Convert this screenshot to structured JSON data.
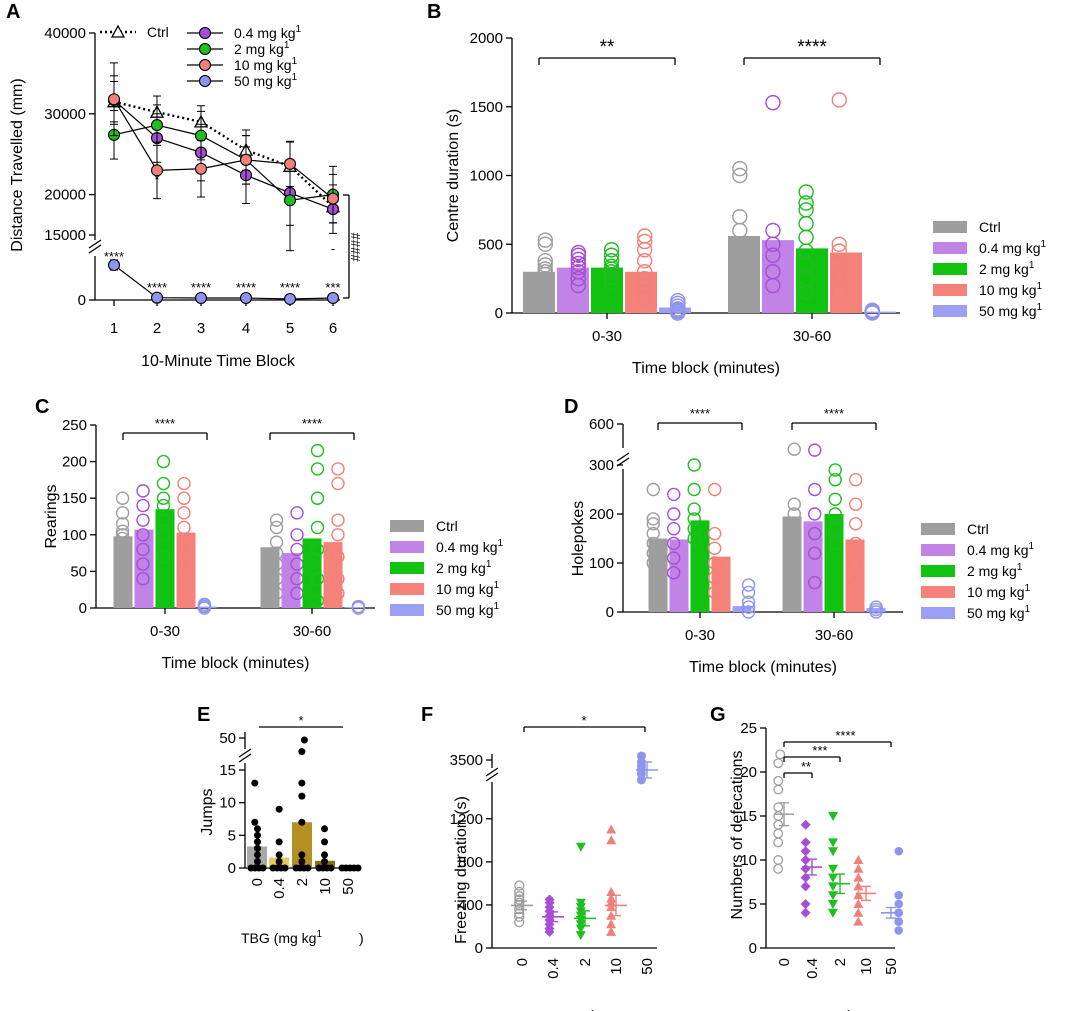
{
  "figure": {
    "sup1": "1",
    "mgkg_prefix": "mg kg",
    "gap_mark": "//"
  },
  "colors": {
    "ctrl": "#9e9e9e",
    "d04": "#a64fd6",
    "d2": "#1fbf1f",
    "d10": "#f08078",
    "d50": "#8f95ee",
    "d04_bar": "#c183e6",
    "d2_bar": "#11c211",
    "d10_bar": "#f4827a",
    "d50_bar": "#9ba0f4",
    "jump_ctrl": "#a9a9a9",
    "jump_low": "#ecc566",
    "jump_mid": "#b58f22",
    "jump_hi": "#8c6b14"
  },
  "chart_data": [
    {
      "id": "A",
      "letter": "A",
      "type": "line",
      "xlabel": "10-Minute Time Block",
      "ylabel": "Distance Travelled (mm)",
      "x": [
        1,
        2,
        3,
        4,
        5,
        6
      ],
      "xticks": [
        "1",
        "2",
        "3",
        "4",
        "5",
        "6"
      ],
      "ylim_upper": [
        15000,
        40000
      ],
      "ylim_lower": [
        0,
        15000
      ],
      "yticks_upper": [
        "20000",
        "30000",
        "40000"
      ],
      "ytick_values_upper": [
        20000,
        30000,
        40000
      ],
      "yticks_lower": [
        "0",
        "15000"
      ],
      "ytick_values_lower": [
        0,
        15000
      ],
      "legend": {
        "ctrl": "Ctrl",
        "dose": [
          "0.4 mg kg",
          "2 mg kg",
          "10 mg kg",
          "50 mg kg"
        ]
      },
      "series": [
        {
          "name": "Ctrl",
          "values": [
            31500,
            30200,
            29000,
            25500,
            23500,
            18500
          ],
          "err": [
            2500,
            2000,
            2000,
            2500,
            3000,
            2000
          ]
        },
        {
          "name": "0.4 mg kg-1",
          "values": [
            31700,
            27000,
            25200,
            22400,
            20200,
            18200
          ],
          "err": [
            3000,
            3000,
            3500,
            3500,
            4000,
            3000
          ]
        },
        {
          "name": "2 mg kg-1",
          "values": [
            27400,
            28600,
            27300,
            24300,
            19300,
            20000
          ],
          "err": [
            3000,
            2500,
            3000,
            3000,
            4500,
            3500
          ]
        },
        {
          "name": "10 mg kg-1",
          "values": [
            31800,
            23000,
            23200,
            24300,
            23800,
            19500
          ],
          "err": [
            4500,
            3500,
            3500,
            3000,
            2800,
            3000
          ]
        },
        {
          "name": "50 mg kg-1",
          "values": [
            10500,
            700,
            600,
            600,
            300,
            600
          ],
          "err": [
            1500,
            300,
            300,
            300,
            300,
            300
          ]
        }
      ],
      "annotations": [
        "****",
        "****",
        "****",
        "****",
        "****",
        "***",
        "*",
        "####",
        "-"
      ]
    },
    {
      "id": "B",
      "letter": "B",
      "type": "bar",
      "xlabel": "Time block (minutes)",
      "ylabel": "Centre duration (s)",
      "categories": [
        "0-30",
        "30-60"
      ],
      "ylim": [
        0,
        2000
      ],
      "yticks": [
        "0",
        "500",
        "1000",
        "1500",
        "2000"
      ],
      "ytick_values": [
        0,
        500,
        1000,
        1500,
        2000
      ],
      "legend": {
        "ctrl": "Ctrl",
        "dose": [
          "0.4 mg kg",
          "2 mg kg",
          "10 mg kg",
          "50 mg kg"
        ]
      },
      "series": [
        {
          "name": "Ctrl",
          "values": [
            300,
            560
          ]
        },
        {
          "name": "0.4 mg kg-1",
          "values": [
            330,
            530
          ]
        },
        {
          "name": "2 mg kg-1",
          "values": [
            330,
            470
          ]
        },
        {
          "name": "10 mg kg-1",
          "values": [
            300,
            440
          ]
        },
        {
          "name": "50 mg kg-1",
          "values": [
            40,
            10
          ]
        }
      ],
      "points": [
        [
          [
            200,
            230,
            250,
            280,
            300,
            320,
            350,
            380,
            500,
            530
          ],
          [
            200,
            250,
            300,
            330,
            360,
            390,
            420,
            440
          ],
          [
            220,
            260,
            300,
            320,
            340,
            380,
            420,
            460
          ],
          [
            100,
            150,
            200,
            250,
            300,
            380,
            460,
            520,
            560
          ],
          [
            0,
            10,
            20,
            30,
            50,
            70,
            90
          ]
        ],
        [
          [
            200,
            300,
            400,
            500,
            600,
            700,
            1000,
            1050
          ],
          [
            200,
            300,
            420,
            500,
            600,
            1530
          ],
          [
            150,
            250,
            350,
            450,
            550,
            650,
            750,
            800,
            880
          ],
          [
            150,
            250,
            300,
            380,
            450,
            500,
            1550
          ],
          [
            0,
            5,
            10,
            15,
            20
          ]
        ]
      ],
      "sig": [
        {
          "text": "**",
          "group": 0
        },
        {
          "text": "****",
          "group": 1
        }
      ]
    },
    {
      "id": "C",
      "letter": "C",
      "type": "bar",
      "xlabel": "Time block (minutes)",
      "ylabel": "Rearings",
      "categories": [
        "0-30",
        "30-60"
      ],
      "ylim": [
        0,
        250
      ],
      "yticks": [
        "0",
        "50",
        "100",
        "150",
        "200",
        "250"
      ],
      "ytick_values": [
        0,
        50,
        100,
        150,
        200,
        250
      ],
      "legend": {
        "ctrl": "Ctrl",
        "dose": [
          "0.4 mg kg",
          "2 mg kg",
          "10 mg kg",
          "50 mg kg"
        ]
      },
      "series": [
        {
          "name": "Ctrl",
          "values": [
            98,
            83
          ]
        },
        {
          "name": "0.4 mg kg-1",
          "values": [
            107,
            75
          ]
        },
        {
          "name": "2 mg kg-1",
          "values": [
            135,
            95
          ]
        },
        {
          "name": "10 mg kg-1",
          "values": [
            103,
            90
          ]
        },
        {
          "name": "50 mg kg-1",
          "values": [
            2,
            1
          ]
        }
      ],
      "points": [
        [
          [
            50,
            70,
            85,
            95,
            100,
            105,
            115,
            130,
            150
          ],
          [
            40,
            60,
            80,
            100,
            120,
            140,
            160
          ],
          [
            70,
            100,
            120,
            140,
            150,
            170,
            200
          ],
          [
            50,
            70,
            90,
            110,
            130,
            150,
            170
          ],
          [
            0,
            2,
            4,
            5
          ]
        ],
        [
          [
            20,
            40,
            60,
            75,
            90,
            110,
            120
          ],
          [
            20,
            40,
            60,
            80,
            100,
            130
          ],
          [
            10,
            40,
            80,
            110,
            150,
            190,
            215
          ],
          [
            20,
            40,
            70,
            100,
            120,
            170,
            190
          ],
          [
            0,
            1,
            2
          ]
        ]
      ],
      "sig": [
        {
          "text": "****",
          "group": 0
        },
        {
          "text": "****",
          "group": 1
        }
      ]
    },
    {
      "id": "D",
      "letter": "D",
      "type": "bar",
      "xlabel": "Time block (minutes)",
      "ylabel": "Holepokes",
      "categories": [
        "0-30",
        "30-60"
      ],
      "ylim": [
        0,
        300
      ],
      "ylim_top": [
        300,
        600
      ],
      "yticks": [
        "0",
        "100",
        "200",
        "300"
      ],
      "ytick_values": [
        0,
        100,
        200,
        300
      ],
      "ytick_top": "600",
      "legend": {
        "ctrl": "Ctrl",
        "dose": [
          "0.4 mg kg",
          "2 mg kg",
          "10 mg kg",
          "50 mg kg"
        ]
      },
      "series": [
        {
          "name": "Ctrl",
          "values": [
            150,
            195
          ]
        },
        {
          "name": "0.4 mg kg-1",
          "values": [
            148,
            185
          ]
        },
        {
          "name": "2 mg kg-1",
          "values": [
            187,
            200
          ]
        },
        {
          "name": "10 mg kg-1",
          "values": [
            113,
            148
          ]
        },
        {
          "name": "50 mg kg-1",
          "values": [
            12,
            8
          ]
        }
      ],
      "points": [
        [
          [
            100,
            120,
            140,
            160,
            180,
            190,
            250
          ],
          [
            80,
            110,
            140,
            170,
            200,
            240
          ],
          [
            150,
            170,
            190,
            210,
            250,
            300
          ],
          [
            40,
            70,
            100,
            130,
            160,
            250
          ],
          [
            0,
            10,
            20,
            40,
            55
          ]
        ],
        [
          [
            100,
            150,
            180,
            200,
            220,
            330
          ],
          [
            60,
            120,
            160,
            200,
            250,
            320
          ],
          [
            140,
            170,
            200,
            230,
            270,
            290
          ],
          [
            60,
            100,
            140,
            180,
            220,
            270
          ],
          [
            0,
            5,
            10
          ]
        ]
      ],
      "sig": [
        {
          "text": "****",
          "group": 0
        },
        {
          "text": "****",
          "group": 1
        }
      ]
    },
    {
      "id": "E",
      "letter": "E",
      "type": "bar",
      "xlabel": "TBG (mg kg",
      "ylabel": "Jumps",
      "categories": [
        "0",
        "0.4",
        "2",
        "10",
        "50"
      ],
      "values": [
        3.3,
        1.6,
        7.0,
        1.1,
        0.0
      ],
      "ylim": [
        0,
        15
      ],
      "ylim_top": [
        15,
        50
      ],
      "yticks": [
        "0",
        "5",
        "10",
        "15"
      ],
      "ytick_values": [
        0,
        5,
        10,
        15
      ],
      "ytick_top": "50",
      "points": [
        [
          0,
          0,
          0,
          0,
          1,
          2,
          3,
          4,
          5,
          6,
          7,
          13
        ],
        [
          0,
          0,
          0,
          0,
          1,
          2,
          4,
          9
        ],
        [
          0,
          0,
          0,
          0,
          1,
          2,
          7,
          11,
          13,
          16,
          45
        ],
        [
          0,
          0,
          0,
          0,
          1,
          2,
          4,
          6
        ],
        [
          0,
          0,
          0,
          0,
          0
        ]
      ],
      "sig": [
        {
          "text": "*"
        }
      ]
    },
    {
      "id": "F",
      "letter": "F",
      "type": "scatter",
      "xlabel": "TBG (mg kg",
      "ylabel": "Freezing duration (s)",
      "categories": [
        "0",
        "0.4",
        "2",
        "10",
        "50"
      ],
      "means": [
        395,
        290,
        275,
        395,
        3450
      ],
      "sem": [
        40,
        45,
        70,
        95,
        40
      ],
      "ylim": [
        0,
        1300
      ],
      "ylim_top": [
        3300,
        3600
      ],
      "yticks": [
        "0",
        "400",
        "800",
        "1200"
      ],
      "ytick_values": [
        0,
        400,
        800,
        1200
      ],
      "ytick_top": "3500",
      "points": [
        [
          240,
          290,
          320,
          360,
          400,
          420,
          450,
          480,
          520,
          580
        ],
        [
          150,
          180,
          220,
          260,
          300,
          340,
          380,
          420,
          450
        ],
        [
          120,
          180,
          220,
          260,
          300,
          340,
          380,
          420,
          940
        ],
        [
          150,
          220,
          300,
          380,
          420,
          460,
          520,
          1000,
          1100
        ],
        [
          3400,
          3430,
          3450,
          3470,
          3490,
          3520
        ]
      ],
      "sig": [
        {
          "text": "*"
        }
      ]
    },
    {
      "id": "G",
      "letter": "G",
      "type": "scatter",
      "xlabel": "TBG (mg kg",
      "ylabel": "Numbers of defecations",
      "categories": [
        "0",
        "0.4",
        "2",
        "10",
        "50"
      ],
      "means": [
        15.2,
        9.2,
        7.3,
        6.2,
        4.0
      ],
      "sem": [
        1.3,
        0.9,
        1.1,
        0.8,
        0.6
      ],
      "ylim": [
        0,
        25
      ],
      "yticks": [
        "0",
        "5",
        "10",
        "15",
        "20",
        "25"
      ],
      "ytick_values": [
        0,
        5,
        10,
        15,
        20,
        25
      ],
      "points": [
        [
          9,
          10,
          12,
          13,
          14,
          15,
          16,
          18,
          19,
          21,
          22
        ],
        [
          4,
          5,
          7,
          8,
          9,
          10,
          11,
          12,
          14
        ],
        [
          4,
          5,
          6,
          7,
          8,
          9,
          11,
          12,
          15
        ],
        [
          3,
          4,
          5,
          6,
          7,
          8,
          9,
          10
        ],
        [
          2,
          3,
          3,
          4,
          4,
          5,
          6,
          11
        ]
      ],
      "sig": [
        {
          "text": "**"
        },
        {
          "text": "***"
        },
        {
          "text": "****"
        }
      ]
    }
  ]
}
